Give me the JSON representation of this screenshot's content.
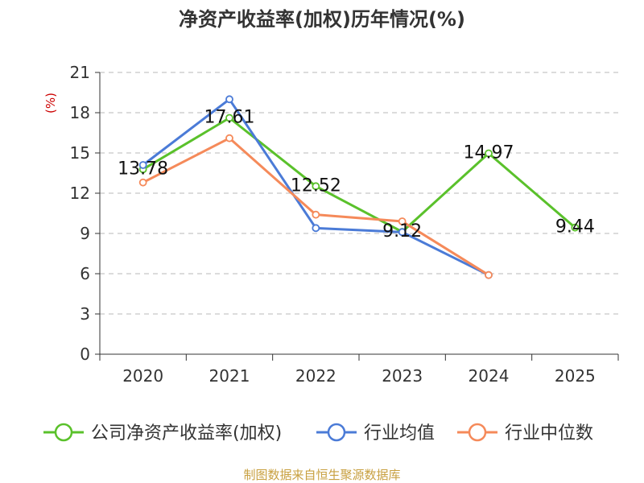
{
  "chart_data": {
    "type": "line",
    "title": "净资产收益率(加权)历年情况(%)",
    "ylabel": "(%)",
    "xlabel": "",
    "categories": [
      "2020",
      "2021",
      "2022",
      "2023",
      "2024",
      "2025"
    ],
    "ylim": [
      0,
      21
    ],
    "yticks": [
      0,
      3,
      6,
      9,
      12,
      15,
      18,
      21
    ],
    "grid": true,
    "legend": "bottom",
    "series": [
      {
        "name": "公司净资产收益率(加权)",
        "color": "#5ac12b",
        "values": [
          13.78,
          17.61,
          12.52,
          9.12,
          14.97,
          9.44
        ],
        "labels": [
          "13.78",
          "17.61",
          "12.52",
          "9.12",
          "14.97",
          "9.44"
        ]
      },
      {
        "name": "行业均值",
        "color": "#4b7bd7",
        "values": [
          14.1,
          19.0,
          9.4,
          9.1,
          5.9,
          null
        ]
      },
      {
        "name": "行业中位数",
        "color": "#f58a5a",
        "values": [
          12.8,
          16.1,
          10.4,
          9.9,
          5.9,
          null
        ]
      }
    ]
  },
  "source": "制图数据来自恒生聚源数据库"
}
